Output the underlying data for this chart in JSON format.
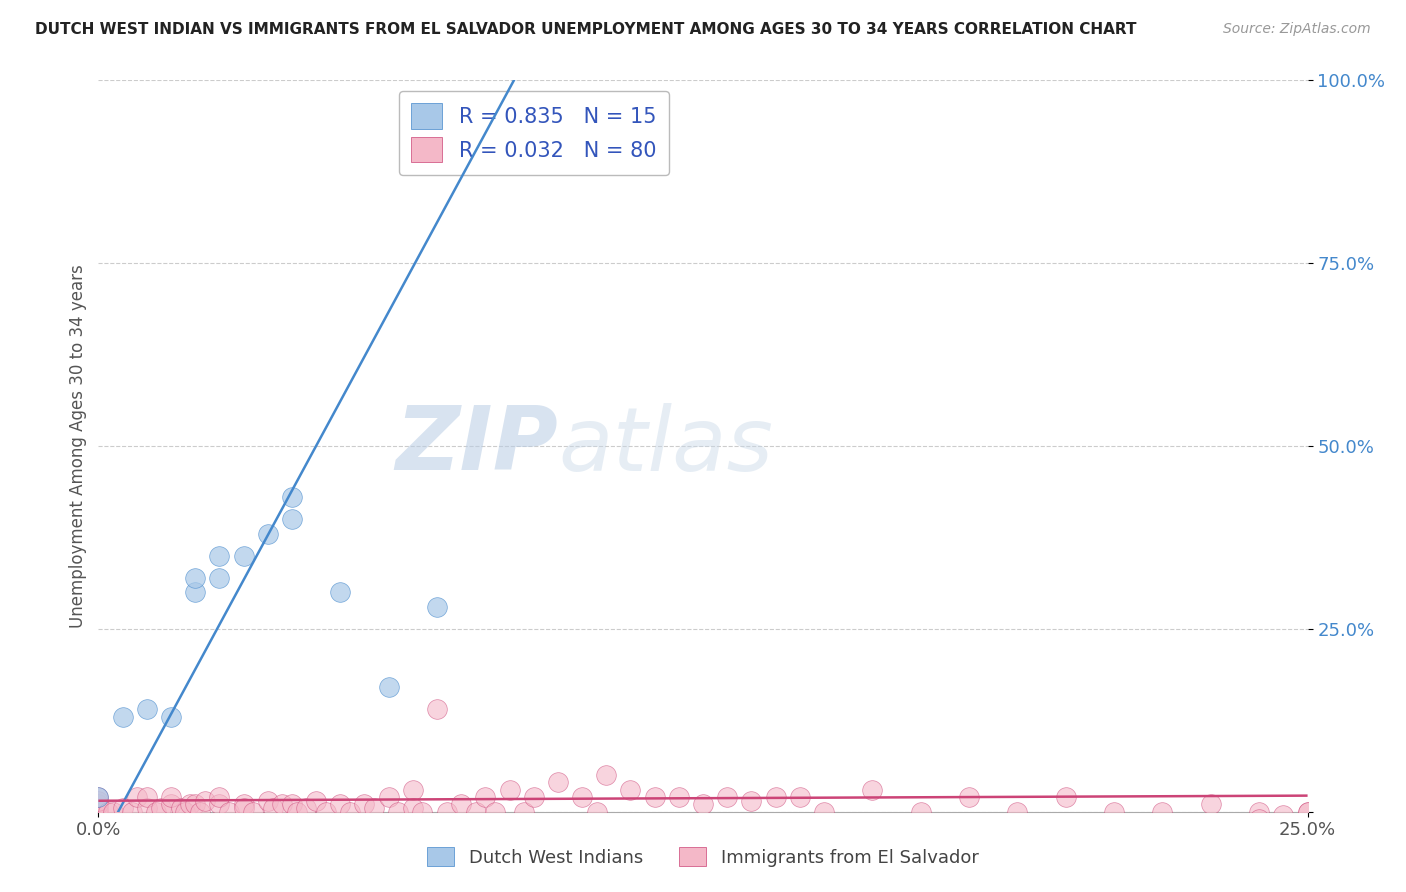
{
  "title": "DUTCH WEST INDIAN VS IMMIGRANTS FROM EL SALVADOR UNEMPLOYMENT AMONG AGES 30 TO 34 YEARS CORRELATION CHART",
  "source": "Source: ZipAtlas.com",
  "ylabel": "Unemployment Among Ages 30 to 34 years",
  "xlim": [
    0.0,
    0.25
  ],
  "ylim": [
    0.0,
    1.0
  ],
  "yticks": [
    0.0,
    0.25,
    0.5,
    0.75,
    1.0
  ],
  "ytick_labels": [
    "",
    "25.0%",
    "50.0%",
    "75.0%",
    "100.0%"
  ],
  "xticks": [
    0.0,
    0.25
  ],
  "xtick_labels": [
    "0.0%",
    "25.0%"
  ],
  "blue_R": 0.835,
  "blue_N": 15,
  "pink_R": 0.032,
  "pink_N": 80,
  "blue_color": "#a8c8e8",
  "pink_color": "#f4b8c8",
  "blue_line_color": "#4488cc",
  "pink_line_color": "#cc4477",
  "legend_blue_label": "Dutch West Indians",
  "legend_pink_label": "Immigrants from El Salvador",
  "watermark_zip": "ZIP",
  "watermark_atlas": "atlas",
  "background_color": "#ffffff",
  "grid_color": "#cccccc",
  "blue_points_x": [
    0.0,
    0.005,
    0.01,
    0.015,
    0.02,
    0.02,
    0.025,
    0.025,
    0.03,
    0.035,
    0.04,
    0.04,
    0.05,
    0.06,
    0.07
  ],
  "blue_points_y": [
    0.02,
    0.13,
    0.14,
    0.13,
    0.3,
    0.32,
    0.32,
    0.35,
    0.35,
    0.38,
    0.4,
    0.43,
    0.3,
    0.17,
    0.28
  ],
  "pink_points_x": [
    0.0,
    0.0,
    0.0,
    0.0,
    0.0,
    0.002,
    0.003,
    0.005,
    0.007,
    0.008,
    0.01,
    0.01,
    0.012,
    0.013,
    0.015,
    0.015,
    0.017,
    0.018,
    0.019,
    0.02,
    0.021,
    0.022,
    0.025,
    0.025,
    0.027,
    0.03,
    0.03,
    0.032,
    0.035,
    0.036,
    0.038,
    0.04,
    0.041,
    0.043,
    0.045,
    0.047,
    0.05,
    0.052,
    0.055,
    0.057,
    0.06,
    0.062,
    0.065,
    0.065,
    0.067,
    0.07,
    0.072,
    0.075,
    0.078,
    0.08,
    0.082,
    0.085,
    0.088,
    0.09,
    0.095,
    0.1,
    0.103,
    0.105,
    0.11,
    0.115,
    0.12,
    0.125,
    0.13,
    0.135,
    0.14,
    0.145,
    0.15,
    0.16,
    0.17,
    0.18,
    0.19,
    0.2,
    0.21,
    0.22,
    0.23,
    0.24,
    0.24,
    0.245,
    0.25,
    0.25
  ],
  "pink_points_y": [
    0.0,
    0.005,
    0.01,
    0.015,
    0.02,
    0.0,
    0.0,
    0.005,
    0.0,
    0.02,
    0.005,
    0.02,
    0.0,
    0.005,
    0.01,
    0.02,
    0.005,
    0.0,
    0.01,
    0.01,
    0.0,
    0.015,
    0.01,
    0.02,
    0.0,
    0.01,
    0.005,
    0.0,
    0.015,
    0.005,
    0.01,
    0.01,
    0.0,
    0.005,
    0.015,
    0.0,
    0.01,
    0.0,
    0.01,
    0.005,
    0.02,
    0.0,
    0.03,
    0.005,
    0.0,
    0.14,
    0.0,
    0.01,
    0.0,
    0.02,
    0.0,
    0.03,
    0.0,
    0.02,
    0.04,
    0.02,
    0.0,
    0.05,
    0.03,
    0.02,
    0.02,
    0.01,
    0.02,
    0.015,
    0.02,
    0.02,
    0.0,
    0.03,
    0.0,
    0.02,
    0.0,
    0.02,
    0.0,
    0.0,
    0.01,
    0.0,
    -0.01,
    -0.005,
    0.0,
    0.0
  ]
}
